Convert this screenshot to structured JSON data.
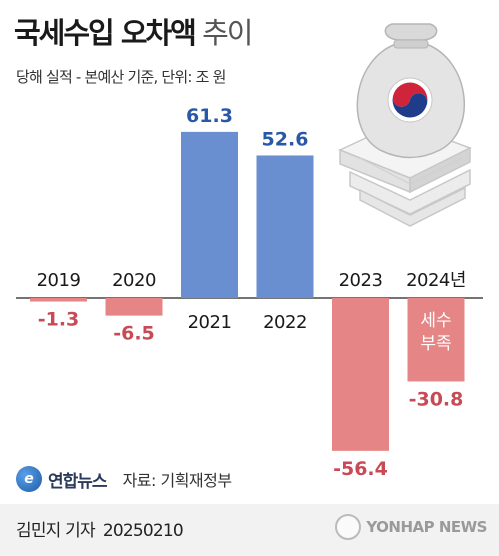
{
  "header": {
    "title_strong": "국세수입 오차액",
    "title_light": "추이",
    "subtitle": "당해 실적 - 본예산 기준, 단위: 조 원"
  },
  "chart_data": {
    "type": "bar",
    "title": "국세수입 오차액 추이",
    "subtitle": "당해 실적 - 본예산 기준, 단위: 조 원",
    "categories": [
      "2019",
      "2020",
      "2021",
      "2022",
      "2023",
      "2024년"
    ],
    "values": [
      -1.3,
      -6.5,
      61.3,
      52.6,
      -56.4,
      -30.8
    ],
    "value_labels": [
      "-1.3",
      "-6.5",
      "61.3",
      "52.6",
      "-56.4",
      "-30.8"
    ],
    "annotation": "세수\n부족",
    "grid": false,
    "colors": {
      "positive": "#6a8fd0",
      "negative": "#e58585",
      "positive_label": "#2a58a8",
      "negative_label": "#c74a55"
    }
  },
  "source": {
    "logo_mark": "e",
    "logo": "연합뉴스",
    "text": "자료: 기획재정부"
  },
  "credit": {
    "author": "김민지 기자",
    "date": "20250210"
  },
  "watermark": {
    "text": "YONHAP NEWS"
  },
  "icons": [
    "money-bag-icon",
    "taegeuk-icon",
    "cash-stack-icon"
  ]
}
